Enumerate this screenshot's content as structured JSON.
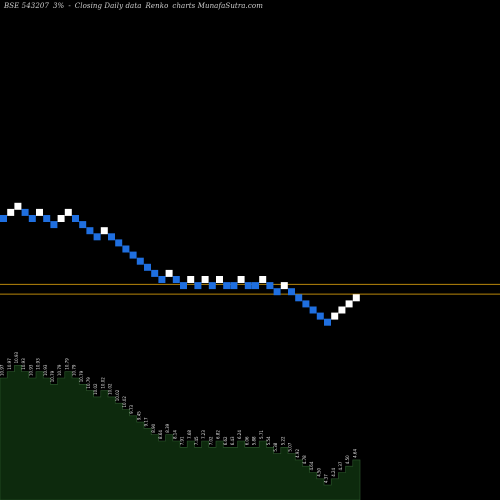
{
  "header": {
    "exchange_symbol": "BSE 543207",
    "box_size": "3%",
    "separator": "-",
    "data_label": "Closing Daily data",
    "chart_kind": "Renko",
    "site": "charts MunafaSutra.com"
  },
  "colors": {
    "background": "#000000",
    "up_brick": "#ffffff",
    "down_brick": "#1f6fe0",
    "level_line": "#b8860b",
    "area_fill": "#0d2a0d",
    "area_edge": "#2e5a2e",
    "label_text": "#e6e6e6"
  },
  "chart_data": {
    "type": "renko",
    "box_size_percent": 3,
    "bricks": [
      {
        "dir": "down",
        "level": 0
      },
      {
        "dir": "up",
        "level": 1
      },
      {
        "dir": "up",
        "level": 2
      },
      {
        "dir": "down",
        "level": 1
      },
      {
        "dir": "down",
        "level": 0
      },
      {
        "dir": "up",
        "level": 1
      },
      {
        "dir": "down",
        "level": 0
      },
      {
        "dir": "down",
        "level": -1
      },
      {
        "dir": "up",
        "level": 0
      },
      {
        "dir": "up",
        "level": 1
      },
      {
        "dir": "down",
        "level": 0
      },
      {
        "dir": "down",
        "level": -1
      },
      {
        "dir": "down",
        "level": -2
      },
      {
        "dir": "down",
        "level": -3
      },
      {
        "dir": "up",
        "level": -2
      },
      {
        "dir": "down",
        "level": -3
      },
      {
        "dir": "down",
        "level": -4
      },
      {
        "dir": "down",
        "level": -5
      },
      {
        "dir": "down",
        "level": -6
      },
      {
        "dir": "down",
        "level": -7
      },
      {
        "dir": "down",
        "level": -8
      },
      {
        "dir": "down",
        "level": -9
      },
      {
        "dir": "down",
        "level": -10
      },
      {
        "dir": "up",
        "level": -9
      },
      {
        "dir": "down",
        "level": -10
      },
      {
        "dir": "down",
        "level": -11
      },
      {
        "dir": "up",
        "level": -10
      },
      {
        "dir": "down",
        "level": -11
      },
      {
        "dir": "up",
        "level": -10
      },
      {
        "dir": "down",
        "level": -11
      },
      {
        "dir": "up",
        "level": -10
      },
      {
        "dir": "down",
        "level": -11
      },
      {
        "dir": "down",
        "level": -11
      },
      {
        "dir": "up",
        "level": -10
      },
      {
        "dir": "down",
        "level": -11
      },
      {
        "dir": "down",
        "level": -11
      },
      {
        "dir": "up",
        "level": -10
      },
      {
        "dir": "down",
        "level": -11
      },
      {
        "dir": "down",
        "level": -12
      },
      {
        "dir": "up",
        "level": -11
      },
      {
        "dir": "down",
        "level": -12
      },
      {
        "dir": "down",
        "level": -13
      },
      {
        "dir": "down",
        "level": -14
      },
      {
        "dir": "down",
        "level": -15
      },
      {
        "dir": "down",
        "level": -16
      },
      {
        "dir": "down",
        "level": -17
      },
      {
        "dir": "up",
        "level": -16
      },
      {
        "dir": "up",
        "level": -15
      },
      {
        "dir": "up",
        "level": -14
      },
      {
        "dir": "up",
        "level": -13
      }
    ],
    "reference_levels": [
      -10.8,
      -12.4
    ],
    "area_levels": [
      0,
      1,
      2,
      1,
      0,
      1,
      0,
      -1,
      0,
      1,
      0,
      -1,
      -2,
      -3,
      -2,
      -3,
      -4,
      -5,
      -6,
      -7,
      -8,
      -9,
      -10,
      -9,
      -10,
      -11,
      -10,
      -11,
      -10,
      -11,
      -10,
      -11,
      -11,
      -10,
      -11,
      -11,
      -10,
      -11,
      -12,
      -11,
      -12,
      -13,
      -14,
      -15,
      -16,
      -17,
      -16,
      -15,
      -14,
      -13
    ],
    "price_labels": [
      "10.97",
      "10.97",
      "10.93",
      "10.93",
      "10.93",
      "10.93",
      "10.93",
      "10.79",
      "10.79",
      "10.79",
      "10.79",
      "10.79",
      "10.79",
      "10.02",
      "10.02",
      "10.02",
      "10.02",
      "10.02",
      "9.73",
      "9.45",
      "9.17",
      "8.90",
      "8.64",
      "8.39",
      "8.14",
      "7.91",
      "7.68",
      "7.45",
      "7.23",
      "7.02",
      "6.82",
      "6.62",
      "6.43",
      "6.24",
      "6.06",
      "5.88",
      "5.71",
      "5.54",
      "5.38",
      "5.22",
      "5.07",
      "4.92",
      "4.78",
      "4.64",
      "4.50",
      "4.37",
      "4.24",
      "4.37",
      "4.50",
      "4.64"
    ]
  }
}
